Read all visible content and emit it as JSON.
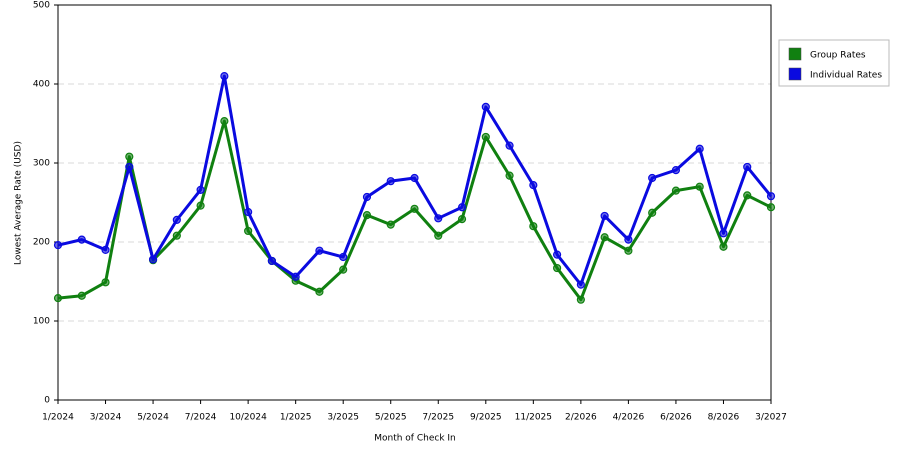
{
  "chart_data": {
    "type": "line",
    "x_label": "Month of Check In",
    "y_label": "Lowest Average Rate (USD)",
    "categories": [
      "1/2024",
      null,
      "3/2024",
      null,
      "5/2024",
      null,
      "7/2024",
      null,
      "10/2024",
      null,
      "1/2025",
      null,
      "3/2025",
      null,
      "5/2025",
      null,
      "7/2025",
      null,
      "9/2025",
      null,
      "11/2025",
      null,
      "2/2026",
      null,
      "4/2026",
      null,
      "6/2026",
      null,
      "8/2026",
      null,
      "3/2027"
    ],
    "series": [
      {
        "name": "Group Rates",
        "color": "#108010",
        "values": [
          129,
          132,
          149,
          308,
          177,
          208,
          246,
          353,
          214,
          176,
          151,
          137,
          165,
          234,
          222,
          242,
          208,
          229,
          333,
          284,
          220,
          167,
          127,
          206,
          189,
          237,
          265,
          270,
          194,
          259,
          244
        ]
      },
      {
        "name": "Individual Rates",
        "color": "#0a0ae0",
        "values": [
          196,
          203,
          190,
          295,
          178,
          228,
          266,
          410,
          238,
          176,
          156,
          189,
          181,
          257,
          277,
          281,
          230,
          244,
          371,
          322,
          272,
          184,
          146,
          233,
          203,
          281,
          291,
          318,
          211,
          295,
          258
        ]
      }
    ],
    "ylim": [
      0,
      500
    ],
    "yticks": [
      0,
      100,
      200,
      300,
      400,
      500
    ],
    "grid": true,
    "legend": "right"
  }
}
